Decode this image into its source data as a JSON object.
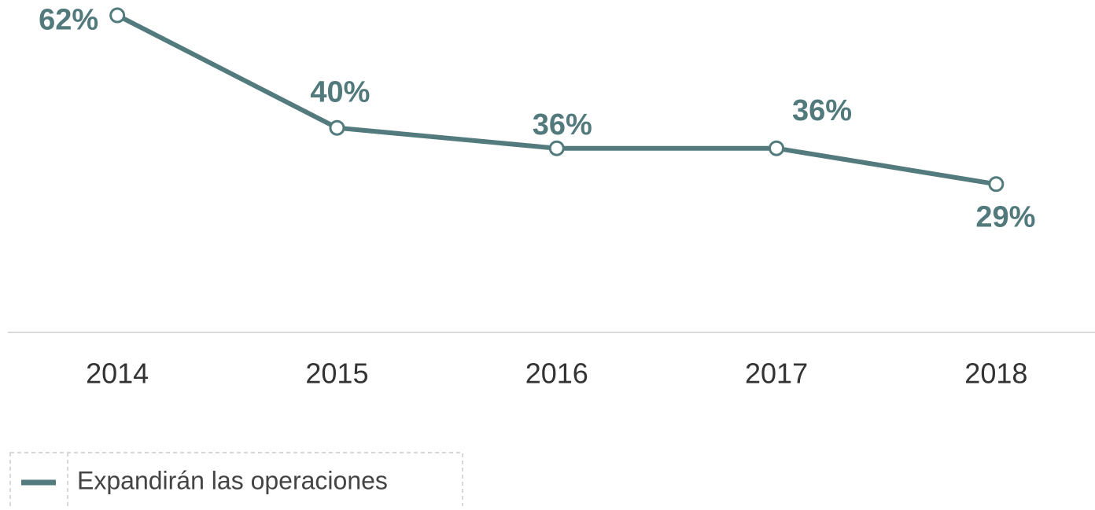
{
  "chart_data": {
    "type": "line",
    "categories": [
      "2014",
      "2015",
      "2016",
      "2017",
      "2018"
    ],
    "series": [
      {
        "name": "Expandirán las operaciones",
        "color": "#537b7d",
        "values": [
          62,
          40,
          36,
          36,
          29
        ],
        "value_labels": [
          "62%",
          "40%",
          "36%",
          "36%",
          "29%"
        ]
      }
    ],
    "ylim": [
      0,
      65
    ],
    "legend": "bottom-left"
  }
}
